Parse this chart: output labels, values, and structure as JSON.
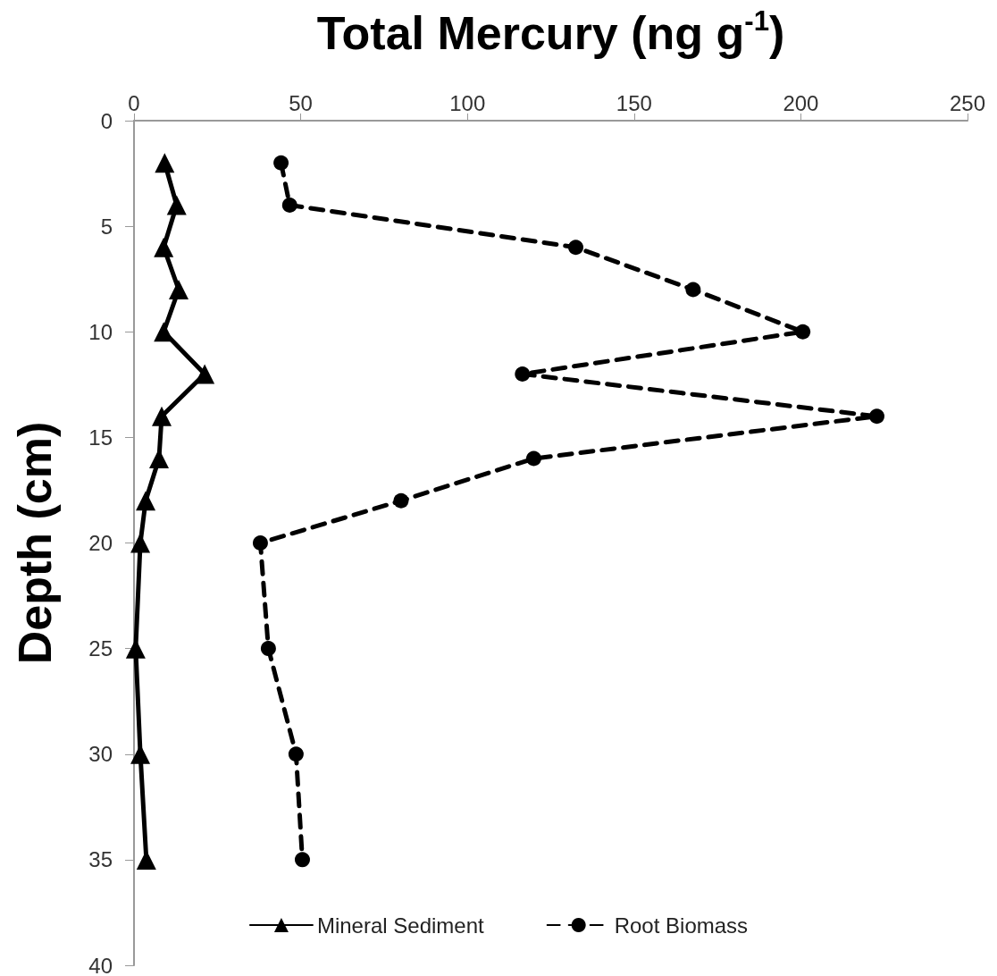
{
  "chart_data": {
    "type": "line",
    "xlabel": "Total Mercury (ng g$^{-1}$)",
    "ylabel": "Depth (cm)",
    "xlim": [
      0,
      250
    ],
    "xticks": [
      0,
      50,
      100,
      150,
      200,
      250
    ],
    "ylim": [
      40,
      0
    ],
    "yticks": [
      0,
      5,
      10,
      15,
      20,
      25,
      30,
      35,
      40
    ],
    "grid": false,
    "legend": "bottom",
    "series": [
      {
        "name": "Mineral Sediment",
        "color": "#000000",
        "marker": "triangle",
        "line_style": "solid",
        "x": [
          9.2,
          12.8,
          8.9,
          13.4,
          8.9,
          21.2,
          8.3,
          7.5,
          3.5,
          1.9,
          0.5,
          1.9,
          3.7
        ],
        "values": [
          2,
          4,
          6,
          8,
          10,
          12,
          14,
          16,
          18,
          20,
          25,
          30,
          35
        ]
      },
      {
        "name": "Root Biomass",
        "color": "#000000",
        "marker": "circle",
        "line_style": "dashed",
        "x": [
          44.1,
          46.7,
          132.5,
          167.7,
          200.6,
          116.5,
          222.8,
          119.9,
          80.1,
          37.9,
          40.3,
          48.6,
          50.5
        ],
        "values": [
          2,
          4,
          6,
          8,
          10,
          12,
          14,
          16,
          18,
          20,
          25,
          30,
          35
        ]
      }
    ]
  }
}
